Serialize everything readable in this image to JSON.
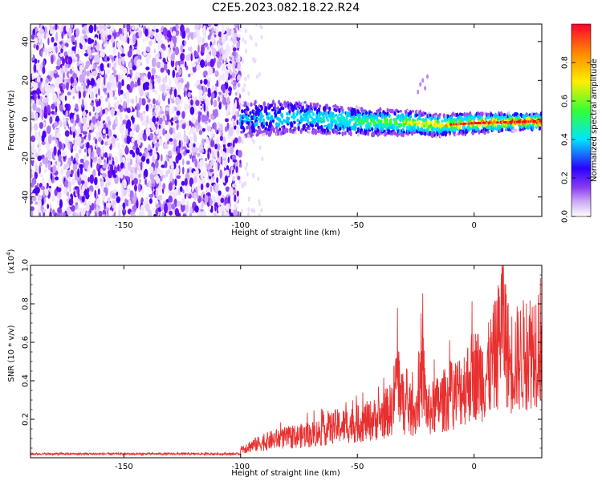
{
  "title": "C2E5.2023.082.18.22.R24",
  "chart_data": [
    {
      "type": "heatmap",
      "xlabel": "Height of straight line (km)",
      "ylabel": "Frequency (Hz)",
      "xlim": [
        -190,
        29
      ],
      "ylim": [
        -50,
        49
      ],
      "xticks": [
        -150,
        -100,
        -50,
        0
      ],
      "yticks": [
        -40,
        -20,
        0,
        20,
        40
      ],
      "colorbar": {
        "label": "Normalized spectral amplitude",
        "range": [
          0,
          1
        ],
        "ticks": [
          "0.0",
          "0.2",
          "0.4",
          "0.6",
          "0.8"
        ],
        "tick_values": [
          0.0,
          0.2,
          0.4,
          0.6,
          0.8
        ],
        "colormap": [
          "#ffffff",
          "#9a4df0",
          "#2a00ff",
          "#00e5ff",
          "#33ff33",
          "#ffee00",
          "#ff8800",
          "#ff0022"
        ]
      },
      "features": {
        "noise_region_x": [
          -190,
          -100
        ],
        "signal_track": [
          {
            "x": -100,
            "y": 0
          },
          {
            "x": -75,
            "y": 1
          },
          {
            "x": -50,
            "y": -1
          },
          {
            "x": -25,
            "y": -2
          },
          {
            "x": -15,
            "y": -3
          },
          {
            "x": 0,
            "y": -2
          },
          {
            "x": 29,
            "y": -1
          }
        ]
      }
    },
    {
      "type": "line",
      "xlabel": "Height of straight line (km)",
      "ylabel": "SNR (10 * v/v)",
      "yunit_label": "(x10",
      "yunit_exponent": "4",
      "yunit_close": ")",
      "xlim": [
        -190,
        29
      ],
      "ylim": [
        0,
        1.0
      ],
      "xticks": [
        -150,
        -100,
        -50,
        0
      ],
      "yticks": [
        0.2,
        0.4,
        0.6,
        0.8,
        1.0
      ],
      "ytick_labels": [
        "0.2",
        "0.4",
        "0.6",
        "0.8",
        "1.0"
      ],
      "color": "#e83030",
      "series": [
        {
          "x": [
            -190,
            -160,
            -130,
            -101,
            -99,
            -95,
            -90,
            -85,
            -80,
            -75,
            -70,
            -65,
            -60,
            -55,
            -50,
            -45,
            -40,
            -35,
            -33,
            -30,
            -25,
            -22,
            -20,
            -15,
            -10,
            -5,
            0,
            5,
            10,
            12,
            15,
            20,
            25,
            29
          ],
          "y": [
            0.02,
            0.02,
            0.02,
            0.02,
            0.06,
            0.08,
            0.1,
            0.12,
            0.13,
            0.14,
            0.15,
            0.17,
            0.2,
            0.21,
            0.22,
            0.24,
            0.26,
            0.32,
            0.55,
            0.32,
            0.3,
            0.55,
            0.3,
            0.35,
            0.4,
            0.45,
            0.55,
            0.52,
            0.7,
            0.95,
            0.62,
            0.65,
            0.72,
            0.78
          ]
        }
      ]
    }
  ]
}
